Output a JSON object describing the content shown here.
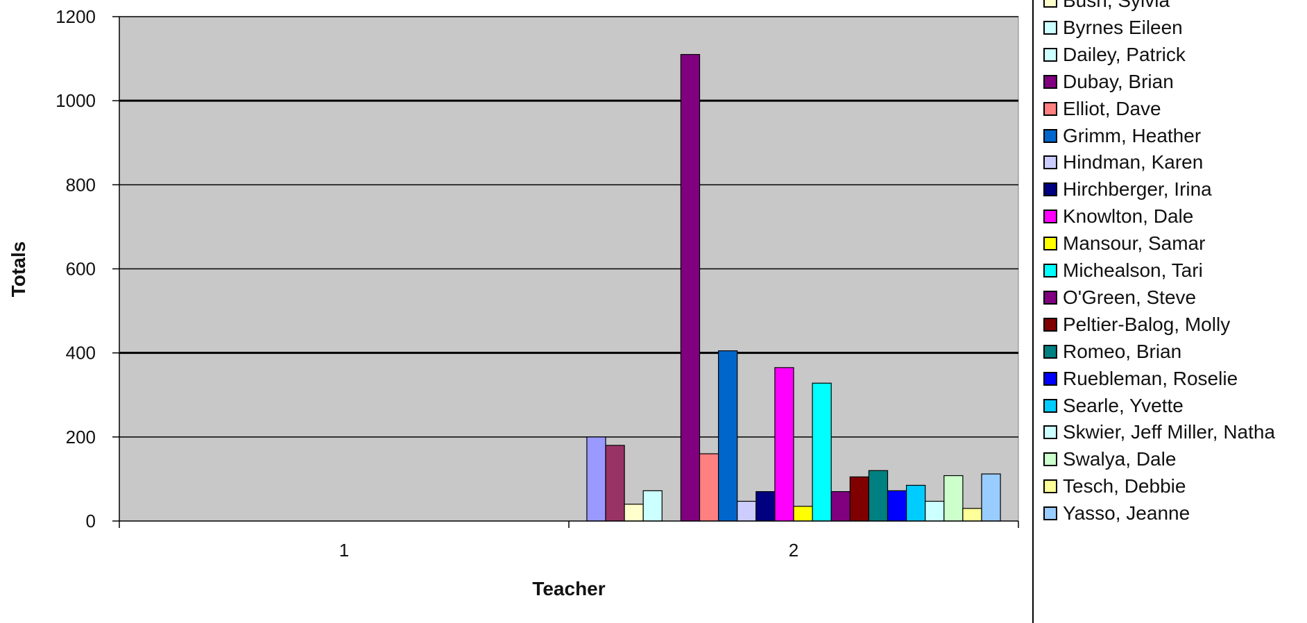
{
  "chart_data": {
    "type": "bar",
    "categories": [
      "1",
      "2"
    ],
    "xlabel": "Teacher",
    "ylabel": "Totals",
    "ylim": [
      0,
      1200
    ],
    "yticks": [
      "0",
      "200",
      "400",
      "600",
      "800",
      "1000",
      "1200"
    ],
    "grid": true,
    "legend_position": "right",
    "plot_background": "#C8C8C8",
    "series": [
      {
        "name": "",
        "color": "#9999FF",
        "values": [
          0,
          200
        ]
      },
      {
        "name": "",
        "color": "#993366",
        "values": [
          0,
          180
        ]
      },
      {
        "name": "Bush, Sylvia",
        "color": "#FFFFCC",
        "values": [
          0,
          40
        ]
      },
      {
        "name": "Byrnes Eileen",
        "color": "#CCFFFF",
        "values": [
          0,
          72
        ]
      },
      {
        "name": "Dailey, Patrick",
        "color": "#CCFFFF",
        "values": [
          0,
          0
        ]
      },
      {
        "name": "Dubay, Brian",
        "color": "#800080",
        "values": [
          0,
          1110
        ]
      },
      {
        "name": "Elliot, Dave",
        "color": "#FF8080",
        "values": [
          0,
          160
        ]
      },
      {
        "name": "Grimm, Heather",
        "color": "#0066CC",
        "values": [
          0,
          405
        ]
      },
      {
        "name": "Hindman, Karen",
        "color": "#CCCCFF",
        "values": [
          0,
          47
        ]
      },
      {
        "name": "Hirchberger, Irina",
        "color": "#000080",
        "values": [
          0,
          70
        ]
      },
      {
        "name": "Knowlton, Dale",
        "color": "#FF00FF",
        "values": [
          0,
          365
        ]
      },
      {
        "name": "Mansour, Samar",
        "color": "#FFFF00",
        "values": [
          0,
          35
        ]
      },
      {
        "name": "Michealson, Tari",
        "color": "#00FFFF",
        "values": [
          0,
          328
        ]
      },
      {
        "name": "O'Green, Steve",
        "color": "#800080",
        "values": [
          0,
          70
        ]
      },
      {
        "name": "Peltier-Balog, Molly",
        "color": "#800000",
        "values": [
          0,
          105
        ]
      },
      {
        "name": "Romeo, Brian",
        "color": "#008080",
        "values": [
          0,
          120
        ]
      },
      {
        "name": "Ruebleman, Roselie",
        "color": "#0000FF",
        "values": [
          0,
          72
        ]
      },
      {
        "name": "Searle, Yvette",
        "color": "#00CCFF",
        "values": [
          0,
          85
        ]
      },
      {
        "name": "Skwier, Jeff Miller, Natha",
        "color": "#CCFFFF",
        "values": [
          0,
          47
        ]
      },
      {
        "name": "Swalya, Dale",
        "color": "#CCFFCC",
        "values": [
          0,
          108
        ]
      },
      {
        "name": "Tesch, Debbie",
        "color": "#FFFF99",
        "values": [
          0,
          30
        ]
      },
      {
        "name": "Yasso, Jeanne",
        "color": "#99CCFF",
        "values": [
          0,
          112
        ]
      }
    ]
  }
}
